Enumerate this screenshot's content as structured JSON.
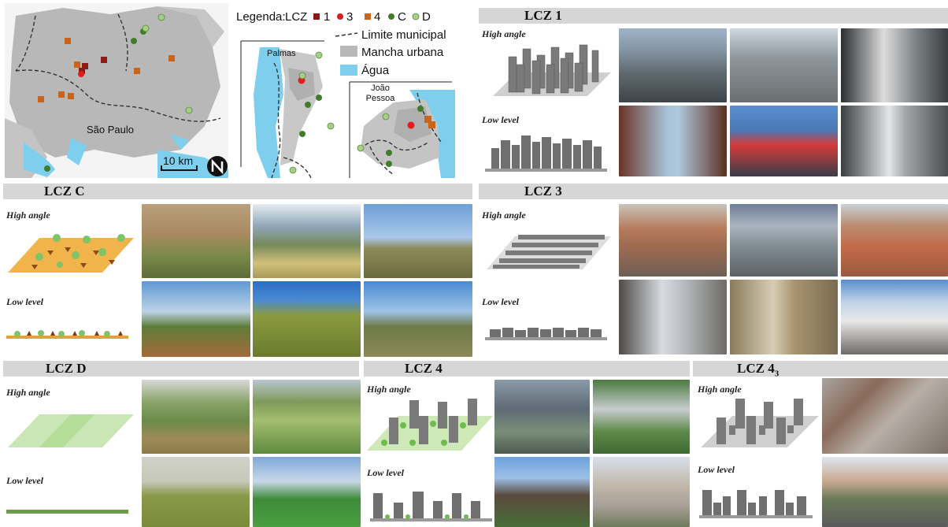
{
  "map": {
    "city_sp": "São Paulo",
    "city_palmas": "Palmas",
    "city_jp": "João Pessoa",
    "scale_label": "10 km",
    "legend": {
      "title": "Legenda:",
      "lcz_label": "LCZ",
      "items": [
        {
          "label": "1",
          "color": "#8b1a1a"
        },
        {
          "label": "3",
          "color": "#e31c1c"
        },
        {
          "label": "4",
          "color": "#c8651b"
        },
        {
          "label": "C",
          "color": "#3f7d2a"
        },
        {
          "label": "D",
          "color": "#a6cf86"
        }
      ],
      "limit_label": "Limite municipal",
      "urban_label": "Mancha urbana",
      "water_label": "Água"
    }
  },
  "panels": {
    "lcz1": {
      "title": "LCZ 1",
      "high": "High angle",
      "low": "Low level"
    },
    "lczc": {
      "title": "LCZ C",
      "high": "High angle",
      "low": "Low level"
    },
    "lcz3": {
      "title": "LCZ 3",
      "high": "High angle",
      "low": "Low level"
    },
    "lczd": {
      "title": "LCZ D",
      "high": "High angle",
      "low": "Low level"
    },
    "lcz4": {
      "title": "LCZ 4",
      "high": "High angle",
      "low": "Low level"
    },
    "lcz43": {
      "title": "LCZ 4",
      "title_sub": "3",
      "high": "High angle",
      "low": "Low level"
    }
  },
  "colors": {
    "urban": "#b8b8b8",
    "water": "#7ecfee",
    "bar": "#d6d6d6"
  }
}
